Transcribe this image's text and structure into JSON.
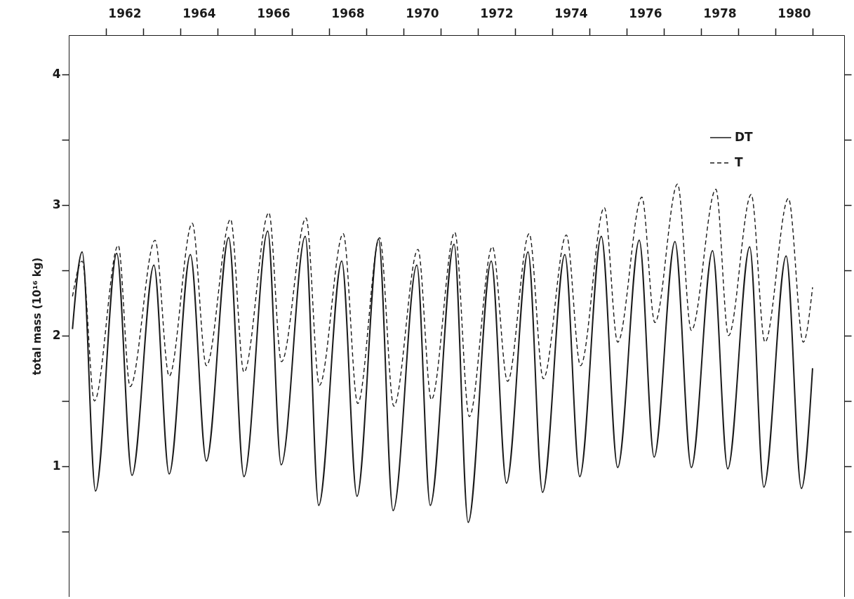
{
  "chart_data": {
    "type": "line",
    "ylabel": "total mass (10¹⁶ kg)",
    "xlim": [
      1961,
      1981.85
    ],
    "ylim": [
      0,
      4.3
    ],
    "xticks": [
      {
        "value": 1962,
        "label": null
      },
      {
        "value": 1963,
        "label": null
      },
      {
        "value": 1964,
        "label": null
      },
      {
        "value": 1965,
        "label": null
      },
      {
        "value": 1966,
        "label": null
      },
      {
        "value": 1967,
        "label": null
      },
      {
        "value": 1968,
        "label": null
      },
      {
        "value": 1969,
        "label": null
      },
      {
        "value": 1970,
        "label": null
      },
      {
        "value": 1971,
        "label": null
      },
      {
        "value": 1972,
        "label": null
      },
      {
        "value": 1973,
        "label": null
      },
      {
        "value": 1974,
        "label": null
      },
      {
        "value": 1975,
        "label": null
      },
      {
        "value": 1976,
        "label": null
      },
      {
        "value": 1977,
        "label": null
      },
      {
        "value": 1978,
        "label": null
      },
      {
        "value": 1979,
        "label": null
      },
      {
        "value": 1980,
        "label": null
      },
      {
        "value": 1981,
        "label": null
      },
      {
        "value": 1962.5,
        "label": "1962"
      },
      {
        "value": 1964.5,
        "label": "1964"
      },
      {
        "value": 1966.5,
        "label": "1966"
      },
      {
        "value": 1968.5,
        "label": "1968"
      },
      {
        "value": 1970.5,
        "label": "1970"
      },
      {
        "value": 1972.5,
        "label": "1972"
      },
      {
        "value": 1974.5,
        "label": "1974"
      },
      {
        "value": 1976.5,
        "label": "1976"
      },
      {
        "value": 1978.5,
        "label": "1978"
      },
      {
        "value": 1980.5,
        "label": "1980"
      }
    ],
    "yticks": [
      {
        "value": 0.5,
        "label": null
      },
      1,
      {
        "value": 1.5,
        "label": null
      },
      2,
      {
        "value": 2.5,
        "label": null
      },
      3,
      {
        "value": 3.5,
        "label": null
      },
      4
    ],
    "grid": false,
    "legend": "top right",
    "marker": "none",
    "series": [
      {
        "name": "DT",
        "color": "#1a1a1a",
        "line_style": "solid",
        "x": [
          1961.1,
          1961.36,
          1961.72,
          1962.29,
          1962.7,
          1963.29,
          1963.7,
          1964.27,
          1964.7,
          1965.3,
          1965.71,
          1966.35,
          1966.71,
          1967.36,
          1967.72,
          1968.34,
          1968.75,
          1969.33,
          1969.72,
          1970.36,
          1970.72,
          1971.36,
          1971.74,
          1972.36,
          1972.77,
          1973.35,
          1973.74,
          1974.34,
          1974.74,
          1975.32,
          1975.76,
          1976.34,
          1976.74,
          1977.3,
          1977.74,
          1978.31,
          1978.72,
          1979.31,
          1979.69,
          1980.29,
          1980.7,
          1981.0
        ],
        "values": [
          2.05,
          2.64,
          0.81,
          2.63,
          0.93,
          2.54,
          0.94,
          2.62,
          1.04,
          2.75,
          0.92,
          2.8,
          1.01,
          2.76,
          0.7,
          2.57,
          0.77,
          2.74,
          0.66,
          2.54,
          0.7,
          2.7,
          0.57,
          2.57,
          0.87,
          2.64,
          0.8,
          2.62,
          0.92,
          2.76,
          0.99,
          2.73,
          1.07,
          2.72,
          0.99,
          2.65,
          0.98,
          2.68,
          0.84,
          2.61,
          0.83,
          1.75
        ]
      },
      {
        "name": "T",
        "color": "#1a1a1a",
        "line_style": "dashed",
        "x": [
          1961.1,
          1961.36,
          1961.69,
          1962.33,
          1962.65,
          1963.32,
          1963.7,
          1964.32,
          1964.7,
          1965.35,
          1965.71,
          1966.38,
          1966.72,
          1967.38,
          1967.74,
          1968.38,
          1968.77,
          1969.36,
          1969.74,
          1970.39,
          1970.75,
          1971.38,
          1971.77,
          1972.39,
          1972.8,
          1973.38,
          1973.76,
          1974.38,
          1974.76,
          1975.4,
          1975.76,
          1976.41,
          1976.76,
          1977.37,
          1977.74,
          1978.4,
          1978.74,
          1979.35,
          1979.72,
          1980.35,
          1980.75,
          1981.0
        ],
        "values": [
          2.3,
          2.57,
          1.5,
          2.69,
          1.61,
          2.73,
          1.69,
          2.86,
          1.77,
          2.89,
          1.72,
          2.94,
          1.8,
          2.9,
          1.62,
          2.78,
          1.48,
          2.75,
          1.46,
          2.66,
          1.51,
          2.79,
          1.38,
          2.68,
          1.65,
          2.78,
          1.67,
          2.77,
          1.77,
          2.98,
          1.95,
          3.06,
          2.1,
          3.16,
          2.04,
          3.12,
          2.0,
          3.08,
          1.95,
          3.05,
          1.95,
          2.37
        ]
      }
    ]
  }
}
